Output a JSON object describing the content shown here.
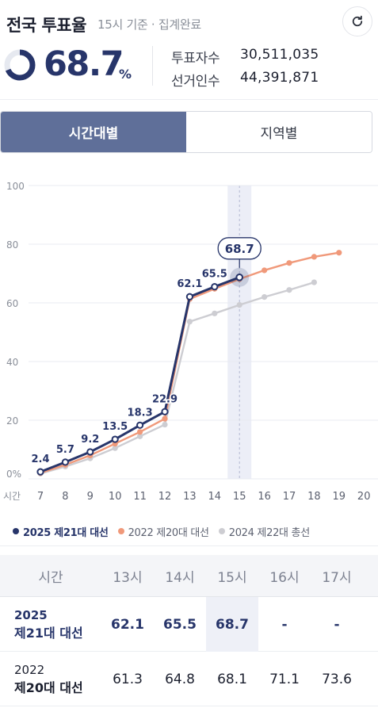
{
  "header": {
    "title": "전국 투표율",
    "subtitle": "15시 기준 · 집계완료",
    "refresh_icon": "refresh-icon"
  },
  "summary": {
    "rate": "68.7",
    "rate_value": 68.7,
    "rate_unit": "%",
    "voters_label": "투표자수",
    "voters_value": "30,511,035",
    "electorate_label": "선거인수",
    "electorate_value": "44,391,871"
  },
  "tabs": [
    {
      "label": "시간대별",
      "active": true
    },
    {
      "label": "지역별",
      "active": false
    }
  ],
  "chart_data": {
    "type": "line",
    "x_axis_label": "시간",
    "x": [
      7,
      8,
      9,
      10,
      11,
      12,
      13,
      14,
      15,
      16,
      17,
      18,
      19,
      20
    ],
    "ylim": [
      0,
      100
    ],
    "y_ticks": [
      "0%",
      "20",
      "40",
      "60",
      "80",
      "100"
    ],
    "y_tick_values": [
      0,
      20,
      40,
      60,
      80,
      100
    ],
    "grid": "horizontal",
    "highlight_x": 15,
    "callout": "68.7",
    "series": [
      {
        "name": "2025 제21대 대선",
        "color": "#27356a",
        "x": [
          7,
          8,
          9,
          10,
          11,
          12,
          13,
          14,
          15
        ],
        "values": [
          2.4,
          5.7,
          9.2,
          13.5,
          18.3,
          22.9,
          62.1,
          65.5,
          68.7
        ],
        "labels": [
          "2.4",
          "5.7",
          "9.2",
          "13.5",
          "18.3",
          "22.9",
          "62.1",
          "65.5"
        ]
      },
      {
        "name": "2022 제20대 대선",
        "color": "#f0997a",
        "x": [
          7,
          8,
          9,
          10,
          11,
          12,
          13,
          14,
          15,
          16,
          17,
          18,
          19
        ],
        "values": [
          2.0,
          4.8,
          8.0,
          12.0,
          16.0,
          20.5,
          61.3,
          64.8,
          68.1,
          71.1,
          73.6,
          75.7,
          77.1
        ]
      },
      {
        "name": "2024 제22대 총선",
        "color": "#cdcdd2",
        "x": [
          7,
          8,
          9,
          10,
          11,
          12,
          13,
          14,
          15,
          16,
          17,
          18
        ],
        "values": [
          1.8,
          4.2,
          7.0,
          10.5,
          14.5,
          18.5,
          53.6,
          56.4,
          59.3,
          62.0,
          64.4,
          67.0
        ]
      }
    ]
  },
  "table": {
    "header": [
      "시간",
      "13시",
      "14시",
      "15시",
      "16시",
      "17시"
    ],
    "rows": [
      {
        "year": "2025",
        "name": "제21대 대선",
        "cells": [
          "62.1",
          "65.5",
          "68.7",
          "-",
          "-"
        ]
      },
      {
        "year": "2022",
        "name": "제20대 대선",
        "cells": [
          "61.3",
          "64.8",
          "68.1",
          "71.1",
          "73.6"
        ]
      }
    ]
  }
}
